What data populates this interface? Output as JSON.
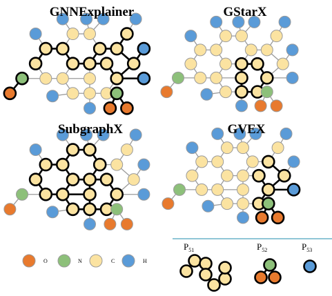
{
  "panels": [
    {
      "id": "gnnexplainer",
      "title": "GNNExplainer"
    },
    {
      "id": "gstarx",
      "title": "GStarX"
    },
    {
      "id": "subgraphx",
      "title": "SubgraphX"
    },
    {
      "id": "gvex",
      "title": "GVEX"
    }
  ],
  "legend": [
    {
      "label": "O",
      "color": "#e87a2e"
    },
    {
      "label": "N",
      "color": "#8dc07a"
    },
    {
      "label": "C",
      "color": "#fbe3a1"
    },
    {
      "label": "H",
      "color": "#5a9bd8"
    }
  ],
  "patterns": [
    {
      "base": "P",
      "sub": "51"
    },
    {
      "base": "P",
      "sub": "52"
    },
    {
      "base": "P",
      "sub": "53"
    }
  ],
  "colors": {
    "oxygen": "#e87a2e",
    "nitrogen": "#8dc07a",
    "carbon": "#fbe3a1",
    "hydrogen": "#5a9bd8",
    "node_stroke": "#9a9a9a",
    "highlight_stroke": "#000000",
    "bond": "#9a9a9a",
    "separator": "#6ab4c8"
  }
}
